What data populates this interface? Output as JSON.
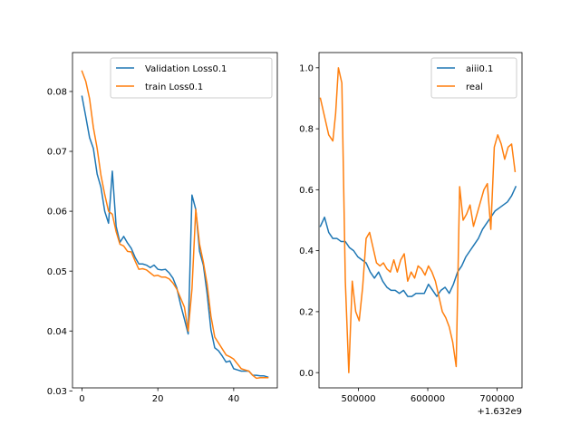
{
  "chart_data": [
    {
      "type": "line",
      "title": "",
      "xlabel": "",
      "ylabel": "",
      "xlim": [
        -2.5,
        51.5
      ],
      "ylim": [
        0.0305,
        0.0865
      ],
      "xticks": [
        0,
        20,
        40
      ],
      "xtick_labels": [
        "0",
        "20",
        "40"
      ],
      "yticks": [
        0.03,
        0.04,
        0.05,
        0.06,
        0.07,
        0.08
      ],
      "ytick_labels": [
        "0.03",
        "0.04",
        "0.05",
        "0.06",
        "0.07",
        "0.08"
      ],
      "grid": false,
      "legend_placement": "upper-right",
      "series": [
        {
          "name": "Validation Loss0.1",
          "color": "#1f77b4",
          "x": [
            0,
            1,
            2,
            3,
            4,
            5,
            6,
            7,
            8,
            9,
            10,
            11,
            12,
            13,
            14,
            15,
            16,
            17,
            18,
            19,
            20,
            21,
            22,
            23,
            24,
            25,
            26,
            27,
            28,
            29,
            30,
            31,
            32,
            33,
            34,
            35,
            36,
            37,
            38,
            39,
            40,
            41,
            42,
            43,
            44,
            45,
            46,
            47,
            48,
            49
          ],
          "y": [
            0.0792,
            0.0758,
            0.0723,
            0.0705,
            0.0662,
            0.064,
            0.06,
            0.058,
            0.0667,
            0.0575,
            0.0548,
            0.0558,
            0.0547,
            0.0538,
            0.0523,
            0.0512,
            0.0512,
            0.051,
            0.0506,
            0.051,
            0.0503,
            0.0502,
            0.0503,
            0.0497,
            0.0488,
            0.0472,
            0.0444,
            0.042,
            0.0395,
            0.0627,
            0.0603,
            0.0533,
            0.051,
            0.0462,
            0.0402,
            0.0372,
            0.0367,
            0.0358,
            0.0348,
            0.035,
            0.0337,
            0.0335,
            0.0333,
            0.0333,
            0.0333,
            0.0326,
            0.0326,
            0.0325,
            0.0325,
            0.0323
          ]
        },
        {
          "name": "train Loss0.1",
          "color": "#ff7f0e",
          "x": [
            0,
            1,
            2,
            3,
            4,
            5,
            6,
            7,
            8,
            9,
            10,
            11,
            12,
            13,
            14,
            15,
            16,
            17,
            18,
            19,
            20,
            21,
            22,
            23,
            24,
            25,
            26,
            27,
            28,
            29,
            30,
            31,
            32,
            33,
            34,
            35,
            36,
            37,
            38,
            39,
            40,
            41,
            42,
            43,
            44,
            45,
            46,
            47,
            48,
            49
          ],
          "y": [
            0.0834,
            0.0817,
            0.0788,
            0.074,
            0.0705,
            0.066,
            0.0628,
            0.06,
            0.0595,
            0.0566,
            0.0545,
            0.0542,
            0.0533,
            0.0532,
            0.0517,
            0.0503,
            0.0504,
            0.0502,
            0.0497,
            0.0492,
            0.0493,
            0.049,
            0.049,
            0.0487,
            0.048,
            0.047,
            0.0455,
            0.044,
            0.04,
            0.047,
            0.0603,
            0.0545,
            0.0515,
            0.0478,
            0.0425,
            0.039,
            0.038,
            0.037,
            0.036,
            0.0357,
            0.0353,
            0.0345,
            0.0337,
            0.0335,
            0.0333,
            0.0326,
            0.0321,
            0.0322,
            0.0322,
            0.0322
          ]
        }
      ]
    },
    {
      "type": "line",
      "title": "",
      "xlabel": "",
      "ylabel": "",
      "xlim": [
        443000,
        736000
      ],
      "ylim": [
        -0.05,
        1.05
      ],
      "xticks": [
        500000,
        600000,
        700000
      ],
      "xtick_labels": [
        "500000",
        "600000",
        "700000"
      ],
      "x_offset_label": "+1.632e9",
      "yticks": [
        0.0,
        0.2,
        0.4,
        0.6,
        0.8,
        1.0
      ],
      "ytick_labels": [
        "0.0",
        "0.2",
        "0.4",
        "0.6",
        "0.8",
        "1.0"
      ],
      "grid": false,
      "legend_placement": "upper-right",
      "series": [
        {
          "name": "aiii0.1",
          "color": "#1f77b4",
          "x": [
            445000,
            451000,
            457000,
            463000,
            469000,
            475000,
            481000,
            487000,
            493000,
            499000,
            505000,
            511000,
            517000,
            523000,
            529000,
            535000,
            541000,
            547000,
            553000,
            559000,
            565000,
            571000,
            577000,
            583000,
            589000,
            595000,
            601000,
            607000,
            613000,
            619000,
            625000,
            631000,
            637000,
            643000,
            649000,
            655000,
            661000,
            667000,
            673000,
            679000,
            685000,
            691000,
            697000,
            703000,
            709000,
            715000,
            721000,
            727000
          ],
          "y": [
            0.48,
            0.51,
            0.46,
            0.44,
            0.44,
            0.43,
            0.43,
            0.41,
            0.4,
            0.38,
            0.37,
            0.36,
            0.33,
            0.31,
            0.33,
            0.3,
            0.28,
            0.27,
            0.27,
            0.26,
            0.27,
            0.25,
            0.25,
            0.26,
            0.26,
            0.26,
            0.29,
            0.27,
            0.25,
            0.27,
            0.28,
            0.26,
            0.29,
            0.33,
            0.35,
            0.38,
            0.4,
            0.42,
            0.44,
            0.47,
            0.49,
            0.51,
            0.53,
            0.54,
            0.55,
            0.56,
            0.58,
            0.61
          ]
        },
        {
          "name": "real",
          "color": "#ff7f0e",
          "x": [
            445000,
            451000,
            457000,
            463000,
            467000,
            471000,
            476000,
            481000,
            486000,
            491000,
            496000,
            501000,
            506000,
            511000,
            516000,
            521000,
            526000,
            531000,
            536000,
            541000,
            546000,
            551000,
            556000,
            561000,
            566000,
            571000,
            576000,
            581000,
            586000,
            591000,
            596000,
            601000,
            606000,
            611000,
            616000,
            621000,
            626000,
            631000,
            636000,
            641000,
            646000,
            651000,
            656000,
            661000,
            666000,
            671000,
            676000,
            681000,
            686000,
            691000,
            696000,
            701000,
            706000,
            711000,
            716000,
            721000,
            726000
          ],
          "y": [
            0.9,
            0.84,
            0.78,
            0.76,
            0.85,
            1.0,
            0.95,
            0.3,
            0.0,
            0.3,
            0.2,
            0.17,
            0.28,
            0.44,
            0.46,
            0.41,
            0.36,
            0.35,
            0.36,
            0.34,
            0.33,
            0.37,
            0.33,
            0.37,
            0.39,
            0.3,
            0.33,
            0.31,
            0.35,
            0.34,
            0.32,
            0.35,
            0.33,
            0.3,
            0.25,
            0.2,
            0.18,
            0.15,
            0.1,
            0.02,
            0.61,
            0.5,
            0.52,
            0.55,
            0.48,
            0.52,
            0.56,
            0.6,
            0.62,
            0.47,
            0.74,
            0.78,
            0.75,
            0.7,
            0.74,
            0.75,
            0.66
          ]
        }
      ]
    }
  ]
}
